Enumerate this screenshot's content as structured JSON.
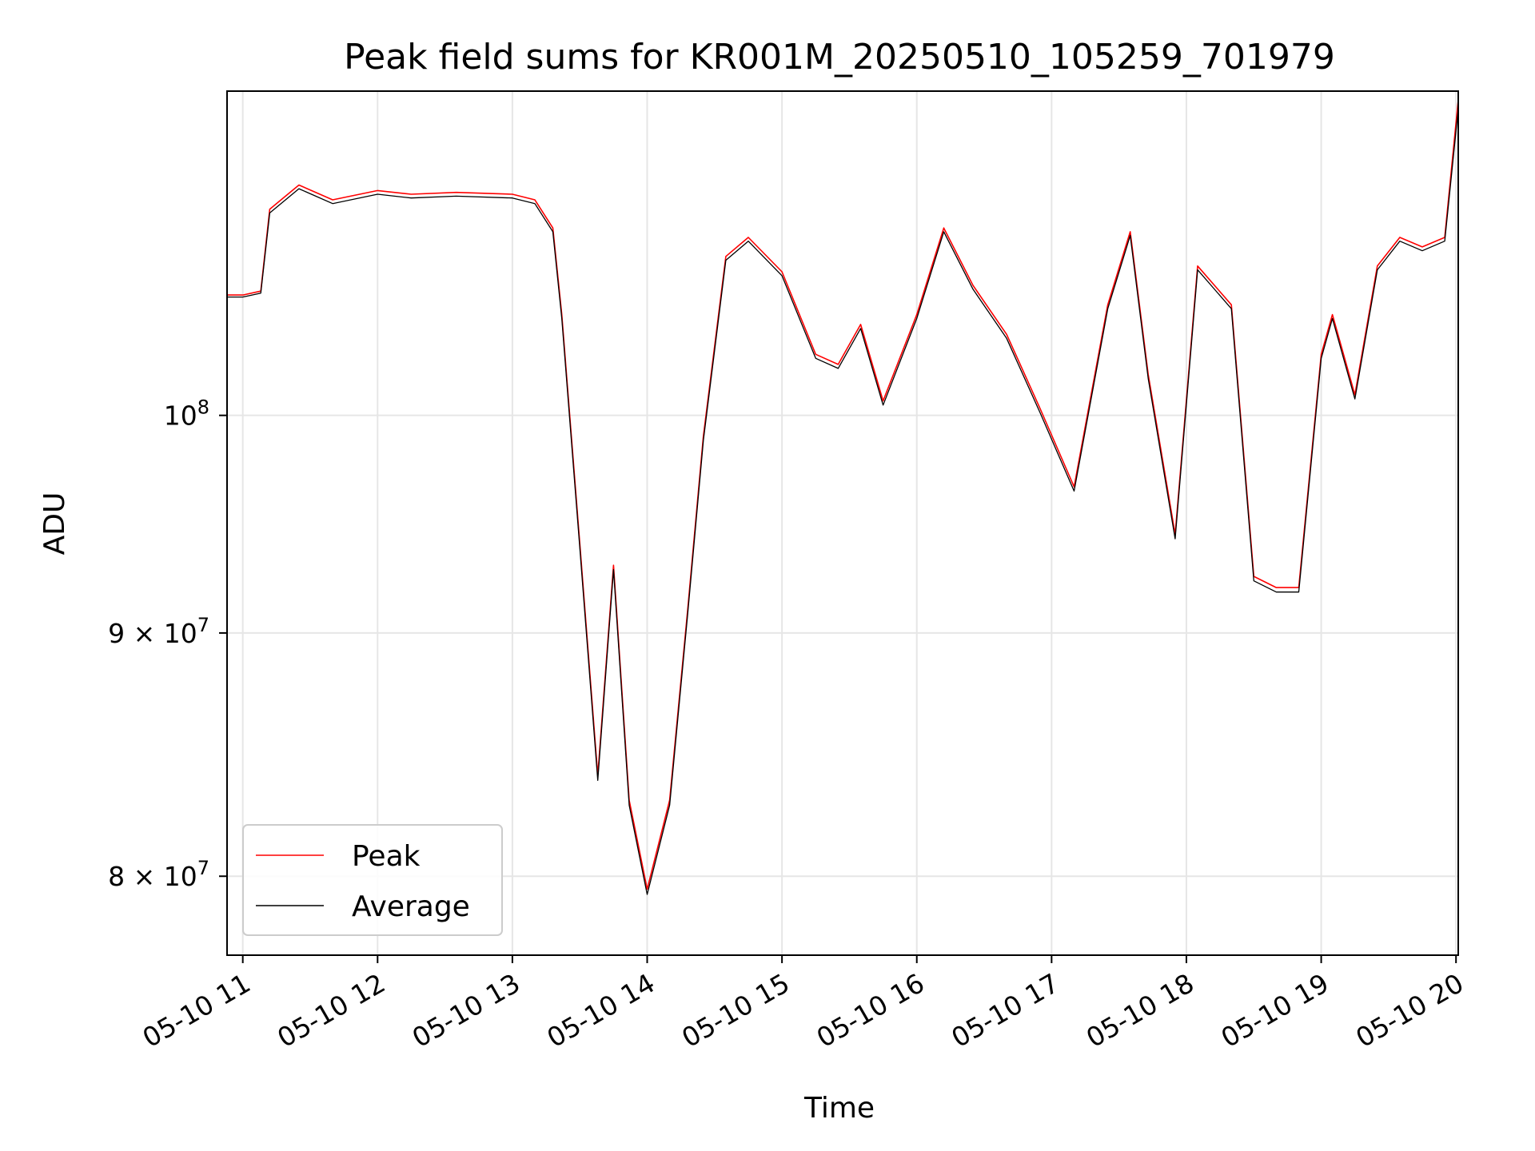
{
  "chart_data": {
    "type": "line",
    "title": "Peak field sums for KR001M_20250510_105259_701979",
    "xlabel": "Time",
    "ylabel": "ADU",
    "x_type": "datetime",
    "x_range": [
      "2025-05-10 10:53",
      "2025-05-10 20:01"
    ],
    "y_scale": "log",
    "ylim": [
      77000000,
      117000000
    ],
    "grid": true,
    "legend_position": "lower left",
    "colors": {
      "Peak": "#ff0000",
      "Average": "#000000"
    },
    "x_ticks": [
      {
        "value": "2025-05-10 11:00",
        "label": "05-10 11"
      },
      {
        "value": "2025-05-10 12:00",
        "label": "05-10 12"
      },
      {
        "value": "2025-05-10 13:00",
        "label": "05-10 13"
      },
      {
        "value": "2025-05-10 14:00",
        "label": "05-10 14"
      },
      {
        "value": "2025-05-10 15:00",
        "label": "05-10 15"
      },
      {
        "value": "2025-05-10 16:00",
        "label": "05-10 16"
      },
      {
        "value": "2025-05-10 17:00",
        "label": "05-10 17"
      },
      {
        "value": "2025-05-10 18:00",
        "label": "05-10 18"
      },
      {
        "value": "2025-05-10 19:00",
        "label": "05-10 19"
      },
      {
        "value": "2025-05-10 20:00",
        "label": "05-10 20"
      }
    ],
    "y_ticks": [
      {
        "value": 80000000,
        "mantissa": "8",
        "base": "10",
        "exp": "7"
      },
      {
        "value": 90000000,
        "mantissa": "9",
        "base": "10",
        "exp": "7"
      },
      {
        "value": 100000000,
        "mantissa": "",
        "base": "10",
        "exp": "8"
      }
    ],
    "series": [
      {
        "name": "Peak",
        "x": [
          "2025-05-10 10:53",
          "2025-05-10 11:00",
          "2025-05-10 11:08",
          "2025-05-10 11:12",
          "2025-05-10 11:25",
          "2025-05-10 11:40",
          "2025-05-10 12:00",
          "2025-05-10 12:15",
          "2025-05-10 12:35",
          "2025-05-10 13:00",
          "2025-05-10 13:10",
          "2025-05-10 13:18",
          "2025-05-10 13:22",
          "2025-05-10 13:30",
          "2025-05-10 13:38",
          "2025-05-10 13:45",
          "2025-05-10 13:52",
          "2025-05-10 14:00",
          "2025-05-10 14:10",
          "2025-05-10 14:18",
          "2025-05-10 14:25",
          "2025-05-10 14:35",
          "2025-05-10 14:45",
          "2025-05-10 15:00",
          "2025-05-10 15:15",
          "2025-05-10 15:25",
          "2025-05-10 15:35",
          "2025-05-10 15:45",
          "2025-05-10 16:00",
          "2025-05-10 16:12",
          "2025-05-10 16:25",
          "2025-05-10 16:40",
          "2025-05-10 16:55",
          "2025-05-10 17:10",
          "2025-05-10 17:25",
          "2025-05-10 17:35",
          "2025-05-10 17:43",
          "2025-05-10 17:55",
          "2025-05-10 18:05",
          "2025-05-10 18:20",
          "2025-05-10 18:30",
          "2025-05-10 18:40",
          "2025-05-10 18:50",
          "2025-05-10 19:00",
          "2025-05-10 19:05",
          "2025-05-10 19:15",
          "2025-05-10 19:25",
          "2025-05-10 19:35",
          "2025-05-10 19:45",
          "2025-05-10 19:55",
          "2025-05-10 20:01"
        ],
        "y": [
          106000000,
          106000000,
          106200000,
          110500000,
          111800000,
          111000000,
          111500000,
          111300000,
          111400000,
          111300000,
          111000000,
          109500000,
          105000000,
          94000000,
          84000000,
          93000000,
          83000000,
          79500000,
          83000000,
          91000000,
          99000000,
          108000000,
          109000000,
          107200000,
          103000000,
          102500000,
          104500000,
          100700000,
          105000000,
          109500000,
          106500000,
          104000000,
          100300000,
          96600000,
          105500000,
          109300000,
          102000000,
          94400000,
          107500000,
          105500000,
          92500000,
          92000000,
          92000000,
          103000000,
          105000000,
          101000000,
          107500000,
          109000000,
          108500000,
          109000000,
          116500000
        ]
      },
      {
        "name": "Average",
        "x": [
          "2025-05-10 10:53",
          "2025-05-10 11:00",
          "2025-05-10 11:08",
          "2025-05-10 11:12",
          "2025-05-10 11:25",
          "2025-05-10 11:40",
          "2025-05-10 12:00",
          "2025-05-10 12:15",
          "2025-05-10 12:35",
          "2025-05-10 13:00",
          "2025-05-10 13:10",
          "2025-05-10 13:18",
          "2025-05-10 13:22",
          "2025-05-10 13:30",
          "2025-05-10 13:38",
          "2025-05-10 13:45",
          "2025-05-10 13:52",
          "2025-05-10 14:00",
          "2025-05-10 14:10",
          "2025-05-10 14:18",
          "2025-05-10 14:25",
          "2025-05-10 14:35",
          "2025-05-10 14:45",
          "2025-05-10 15:00",
          "2025-05-10 15:15",
          "2025-05-10 15:25",
          "2025-05-10 15:35",
          "2025-05-10 15:45",
          "2025-05-10 16:00",
          "2025-05-10 16:12",
          "2025-05-10 16:25",
          "2025-05-10 16:40",
          "2025-05-10 16:55",
          "2025-05-10 17:10",
          "2025-05-10 17:25",
          "2025-05-10 17:35",
          "2025-05-10 17:43",
          "2025-05-10 17:55",
          "2025-05-10 18:05",
          "2025-05-10 18:20",
          "2025-05-10 18:30",
          "2025-05-10 18:40",
          "2025-05-10 18:50",
          "2025-05-10 19:00",
          "2025-05-10 19:05",
          "2025-05-10 19:15",
          "2025-05-10 19:25",
          "2025-05-10 19:35",
          "2025-05-10 19:45",
          "2025-05-10 19:55",
          "2025-05-10 20:01"
        ],
        "y": [
          105900000,
          105900000,
          106100000,
          110300000,
          111600000,
          110800000,
          111300000,
          111100000,
          111200000,
          111100000,
          110800000,
          109300000,
          104800000,
          93800000,
          83800000,
          92800000,
          82800000,
          79300000,
          82800000,
          90800000,
          98800000,
          107800000,
          108800000,
          107000000,
          102800000,
          102300000,
          104300000,
          100500000,
          104800000,
          109300000,
          106300000,
          103800000,
          100100000,
          96400000,
          105300000,
          109100000,
          101800000,
          94200000,
          107300000,
          105300000,
          92300000,
          91800000,
          91800000,
          102800000,
          104800000,
          100800000,
          107300000,
          108800000,
          108300000,
          108800000,
          116000000
        ]
      }
    ]
  }
}
